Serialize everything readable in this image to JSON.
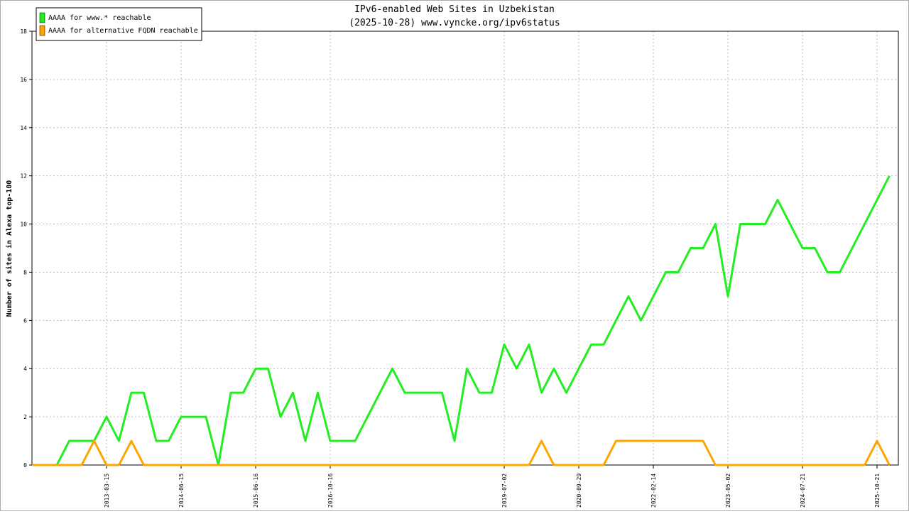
{
  "chart_data": {
    "type": "line",
    "title": "IPv6-enabled Web Sites in Uzbekistan",
    "subtitle": "(2025-10-28) www.vyncke.org/ipv6status",
    "y_label": "Number of sites in Alexa top-100",
    "categories": [
      null,
      null,
      null,
      null,
      null,
      null,
      "2013-03-15",
      null,
      null,
      null,
      null,
      null,
      "2014-06-15",
      null,
      null,
      null,
      null,
      null,
      "2015-06-16",
      null,
      null,
      null,
      null,
      null,
      "2016-10-16",
      null,
      null,
      null,
      null,
      null,
      null,
      null,
      null,
      null,
      null,
      null,
      null,
      null,
      "2019-07-02",
      null,
      null,
      null,
      null,
      null,
      "2020-09-29",
      null,
      null,
      null,
      null,
      null,
      "2022-02-14",
      null,
      null,
      null,
      null,
      null,
      "2023-05-02",
      null,
      null,
      null,
      null,
      null,
      "2024-07-21",
      null,
      null,
      null,
      null,
      null,
      "2025-10-21",
      null
    ],
    "series": [
      {
        "name": "AAAA for www.* reachable",
        "color": "#22ee22",
        "values": [
          0,
          0,
          0,
          1,
          1,
          1,
          2,
          1,
          3,
          3,
          1,
          1,
          2,
          2,
          2,
          0,
          3,
          3,
          4,
          4,
          2,
          3,
          1,
          3,
          1,
          1,
          1,
          2,
          3,
          4,
          3,
          3,
          3,
          3,
          1,
          4,
          3,
          3,
          5,
          4,
          5,
          3,
          4,
          3,
          4,
          5,
          5,
          6,
          7,
          6,
          7,
          8,
          8,
          9,
          9,
          10,
          7,
          10,
          10,
          10,
          11,
          10,
          9,
          9,
          8,
          8,
          9,
          10,
          11,
          12
        ]
      },
      {
        "name": "AAAA for alternative FQDN reachable",
        "color": "#ffa500",
        "values": [
          0,
          0,
          0,
          0,
          0,
          1,
          0,
          0,
          1,
          0,
          0,
          0,
          0,
          0,
          0,
          0,
          0,
          0,
          0,
          0,
          0,
          0,
          0,
          0,
          0,
          0,
          0,
          0,
          0,
          0,
          0,
          0,
          0,
          0,
          0,
          0,
          0,
          0,
          0,
          0,
          0,
          1,
          0,
          0,
          0,
          0,
          0,
          1,
          1,
          1,
          1,
          1,
          1,
          1,
          1,
          0,
          0,
          0,
          0,
          0,
          0,
          0,
          0,
          0,
          0,
          0,
          0,
          0,
          1,
          0
        ]
      }
    ],
    "ylim": [
      0,
      18
    ],
    "yticks": [
      0,
      2,
      4,
      6,
      8,
      10,
      12,
      14,
      16,
      18
    ],
    "grid": true,
    "legend": "top-left"
  }
}
